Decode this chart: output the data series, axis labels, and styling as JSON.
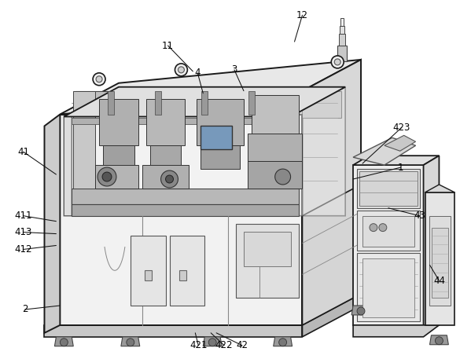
{
  "background_color": "#ffffff",
  "line_color": "#1a1a1a",
  "label_color": "#000000",
  "figsize": [
    5.99,
    4.57
  ],
  "dpi": 100,
  "annotations": [
    [
      "1",
      511,
      213,
      450,
      228
    ],
    [
      "2",
      30,
      395,
      75,
      390
    ],
    [
      "3",
      298,
      88,
      310,
      115
    ],
    [
      "4",
      251,
      92,
      258,
      118
    ],
    [
      "11",
      213,
      57,
      245,
      90
    ],
    [
      "12",
      385,
      18,
      375,
      52
    ],
    [
      "41",
      28,
      193,
      70,
      222
    ],
    [
      "42",
      308,
      441,
      275,
      425
    ],
    [
      "43",
      535,
      275,
      495,
      265
    ],
    [
      "44",
      560,
      358,
      548,
      338
    ],
    [
      "411",
      28,
      275,
      70,
      282
    ],
    [
      "412",
      28,
      318,
      70,
      313
    ],
    [
      "413",
      28,
      296,
      70,
      298
    ],
    [
      "421",
      252,
      441,
      248,
      425
    ],
    [
      "422",
      285,
      441,
      268,
      425
    ],
    [
      "423",
      512,
      162,
      462,
      208
    ]
  ]
}
